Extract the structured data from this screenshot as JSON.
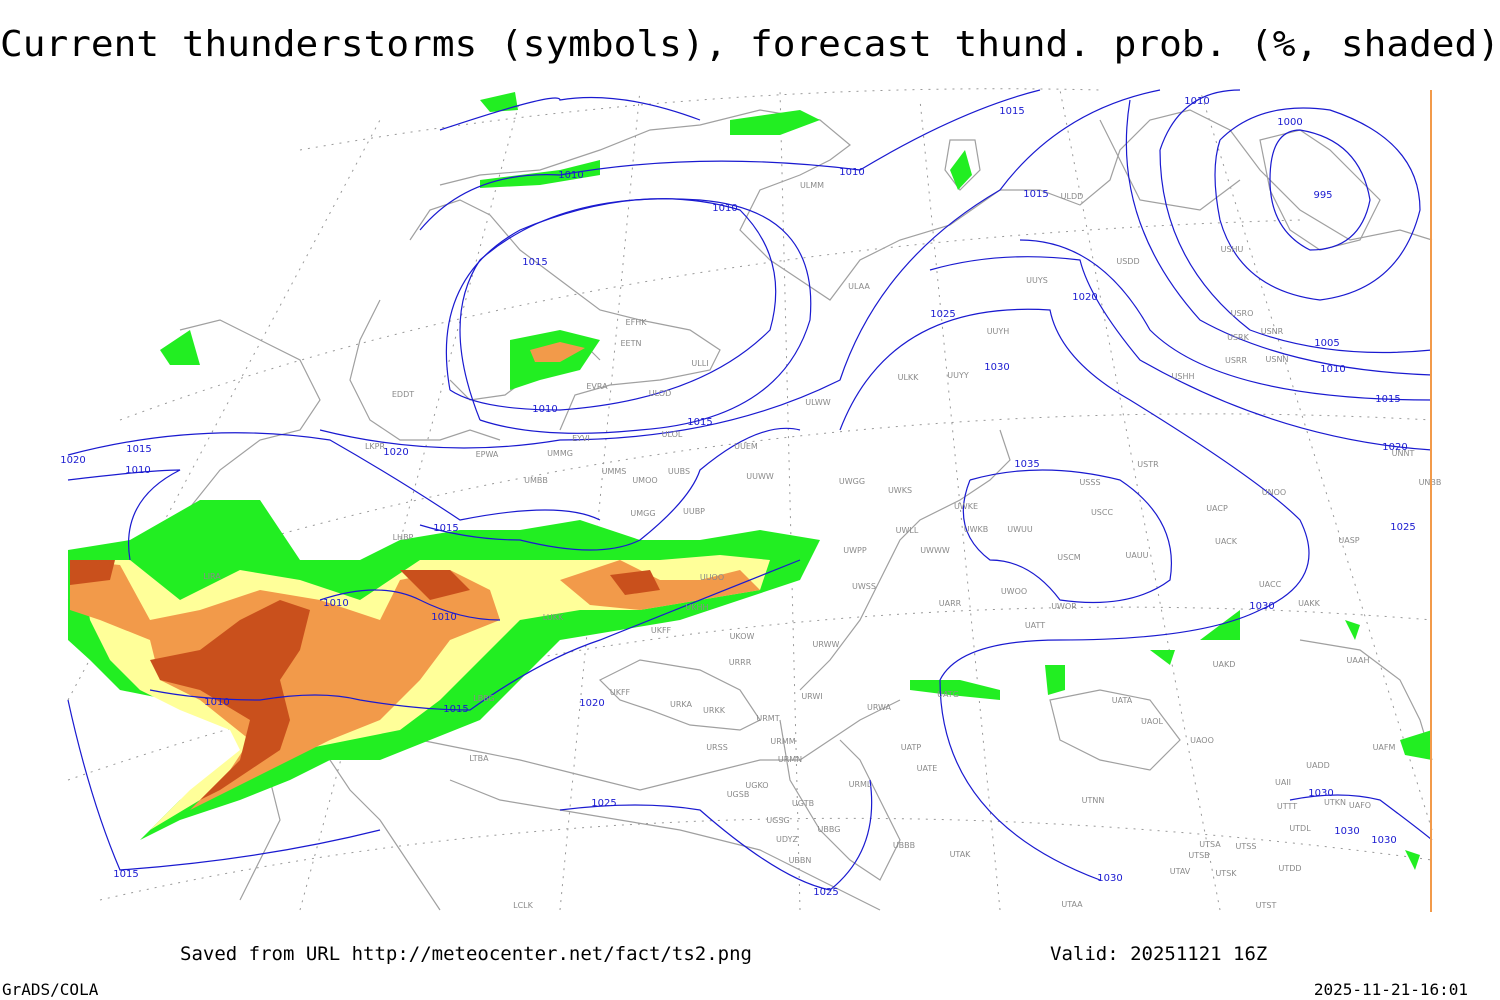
{
  "title": "Current thunderstorms (symbols), forecast thund. prob. (%, shaded)",
  "footer": {
    "source": "Saved from URL http://meteocenter.net/fact/ts2.png",
    "valid": "Valid: 20251121 16Z",
    "software": "GrADS/COLA",
    "timestamp": "2025-11-21-16:01"
  },
  "isobar_labels": [
    1010,
    1015,
    1010,
    1010,
    1015,
    1010,
    1015,
    1000,
    995,
    1020,
    1025,
    1030,
    1005,
    1010,
    1015,
    1020,
    1025,
    1010,
    1015,
    1020,
    1015,
    1010,
    1020,
    1035,
    1015,
    1010,
    1010,
    1030,
    1010,
    1015,
    1020,
    1025,
    1030,
    1030,
    1030,
    1030,
    1015,
    1025
  ],
  "stations": [
    "ULMM",
    "ULDD",
    "USDD",
    "USHU",
    "ULAA",
    "UUYS",
    "EFHK",
    "EETN",
    "ULLI",
    "USRO",
    "USRK",
    "USNR",
    "USRR",
    "USNN",
    "UUYH",
    "EVRA",
    "ULOD",
    "ULWW",
    "UUYY",
    "ULKK",
    "USHH",
    "EDDT",
    "EYVI",
    "ULOL",
    "UUEM",
    "EPWA",
    "UMMG",
    "LKPR",
    "UMMS",
    "UMOO",
    "UUBS",
    "UUWW",
    "UWGG",
    "UWKS",
    "USTR",
    "USSS",
    "UNOO",
    "UNBB",
    "UNNT",
    "UMBB",
    "UMGG",
    "UUBP",
    "UWKE",
    "UWKB",
    "UWUU",
    "USCC",
    "UACP",
    "UACK",
    "UASP",
    "LHBP",
    "UWPP",
    "UWLL",
    "UWWW",
    "USCM",
    "UAUU",
    "LIRA",
    "UUOO",
    "UWSS",
    "UARR",
    "UWOO",
    "UWOR",
    "UACC",
    "UAKK",
    "UKHH",
    "LUKK",
    "UKFF",
    "UKOW",
    "URWW",
    "UATT",
    "URRR",
    "UAKD",
    "UAAH",
    "URWI",
    "UATG",
    "LBBG",
    "UKFF",
    "URKA",
    "URKK",
    "UATA",
    "URMT",
    "URWA",
    "UAOL",
    "UAOO",
    "UAFM",
    "URSS",
    "URMM",
    "UATP",
    "UATE",
    "LTBA",
    "URMN",
    "UADD",
    "UGKO",
    "URML",
    "UAII",
    "UGSB",
    "UGTB",
    "UTNN",
    "UTKN",
    "UAFO",
    "UTTT",
    "UGSG",
    "UBBG",
    "UTDL",
    "UDYZ",
    "UBBB",
    "UTSA",
    "UTSS",
    "UTSB",
    "UTAK",
    "UBBN",
    "UTAV",
    "UTSK",
    "UTDD",
    "LCLK",
    "UTAA",
    "UTST"
  ]
}
